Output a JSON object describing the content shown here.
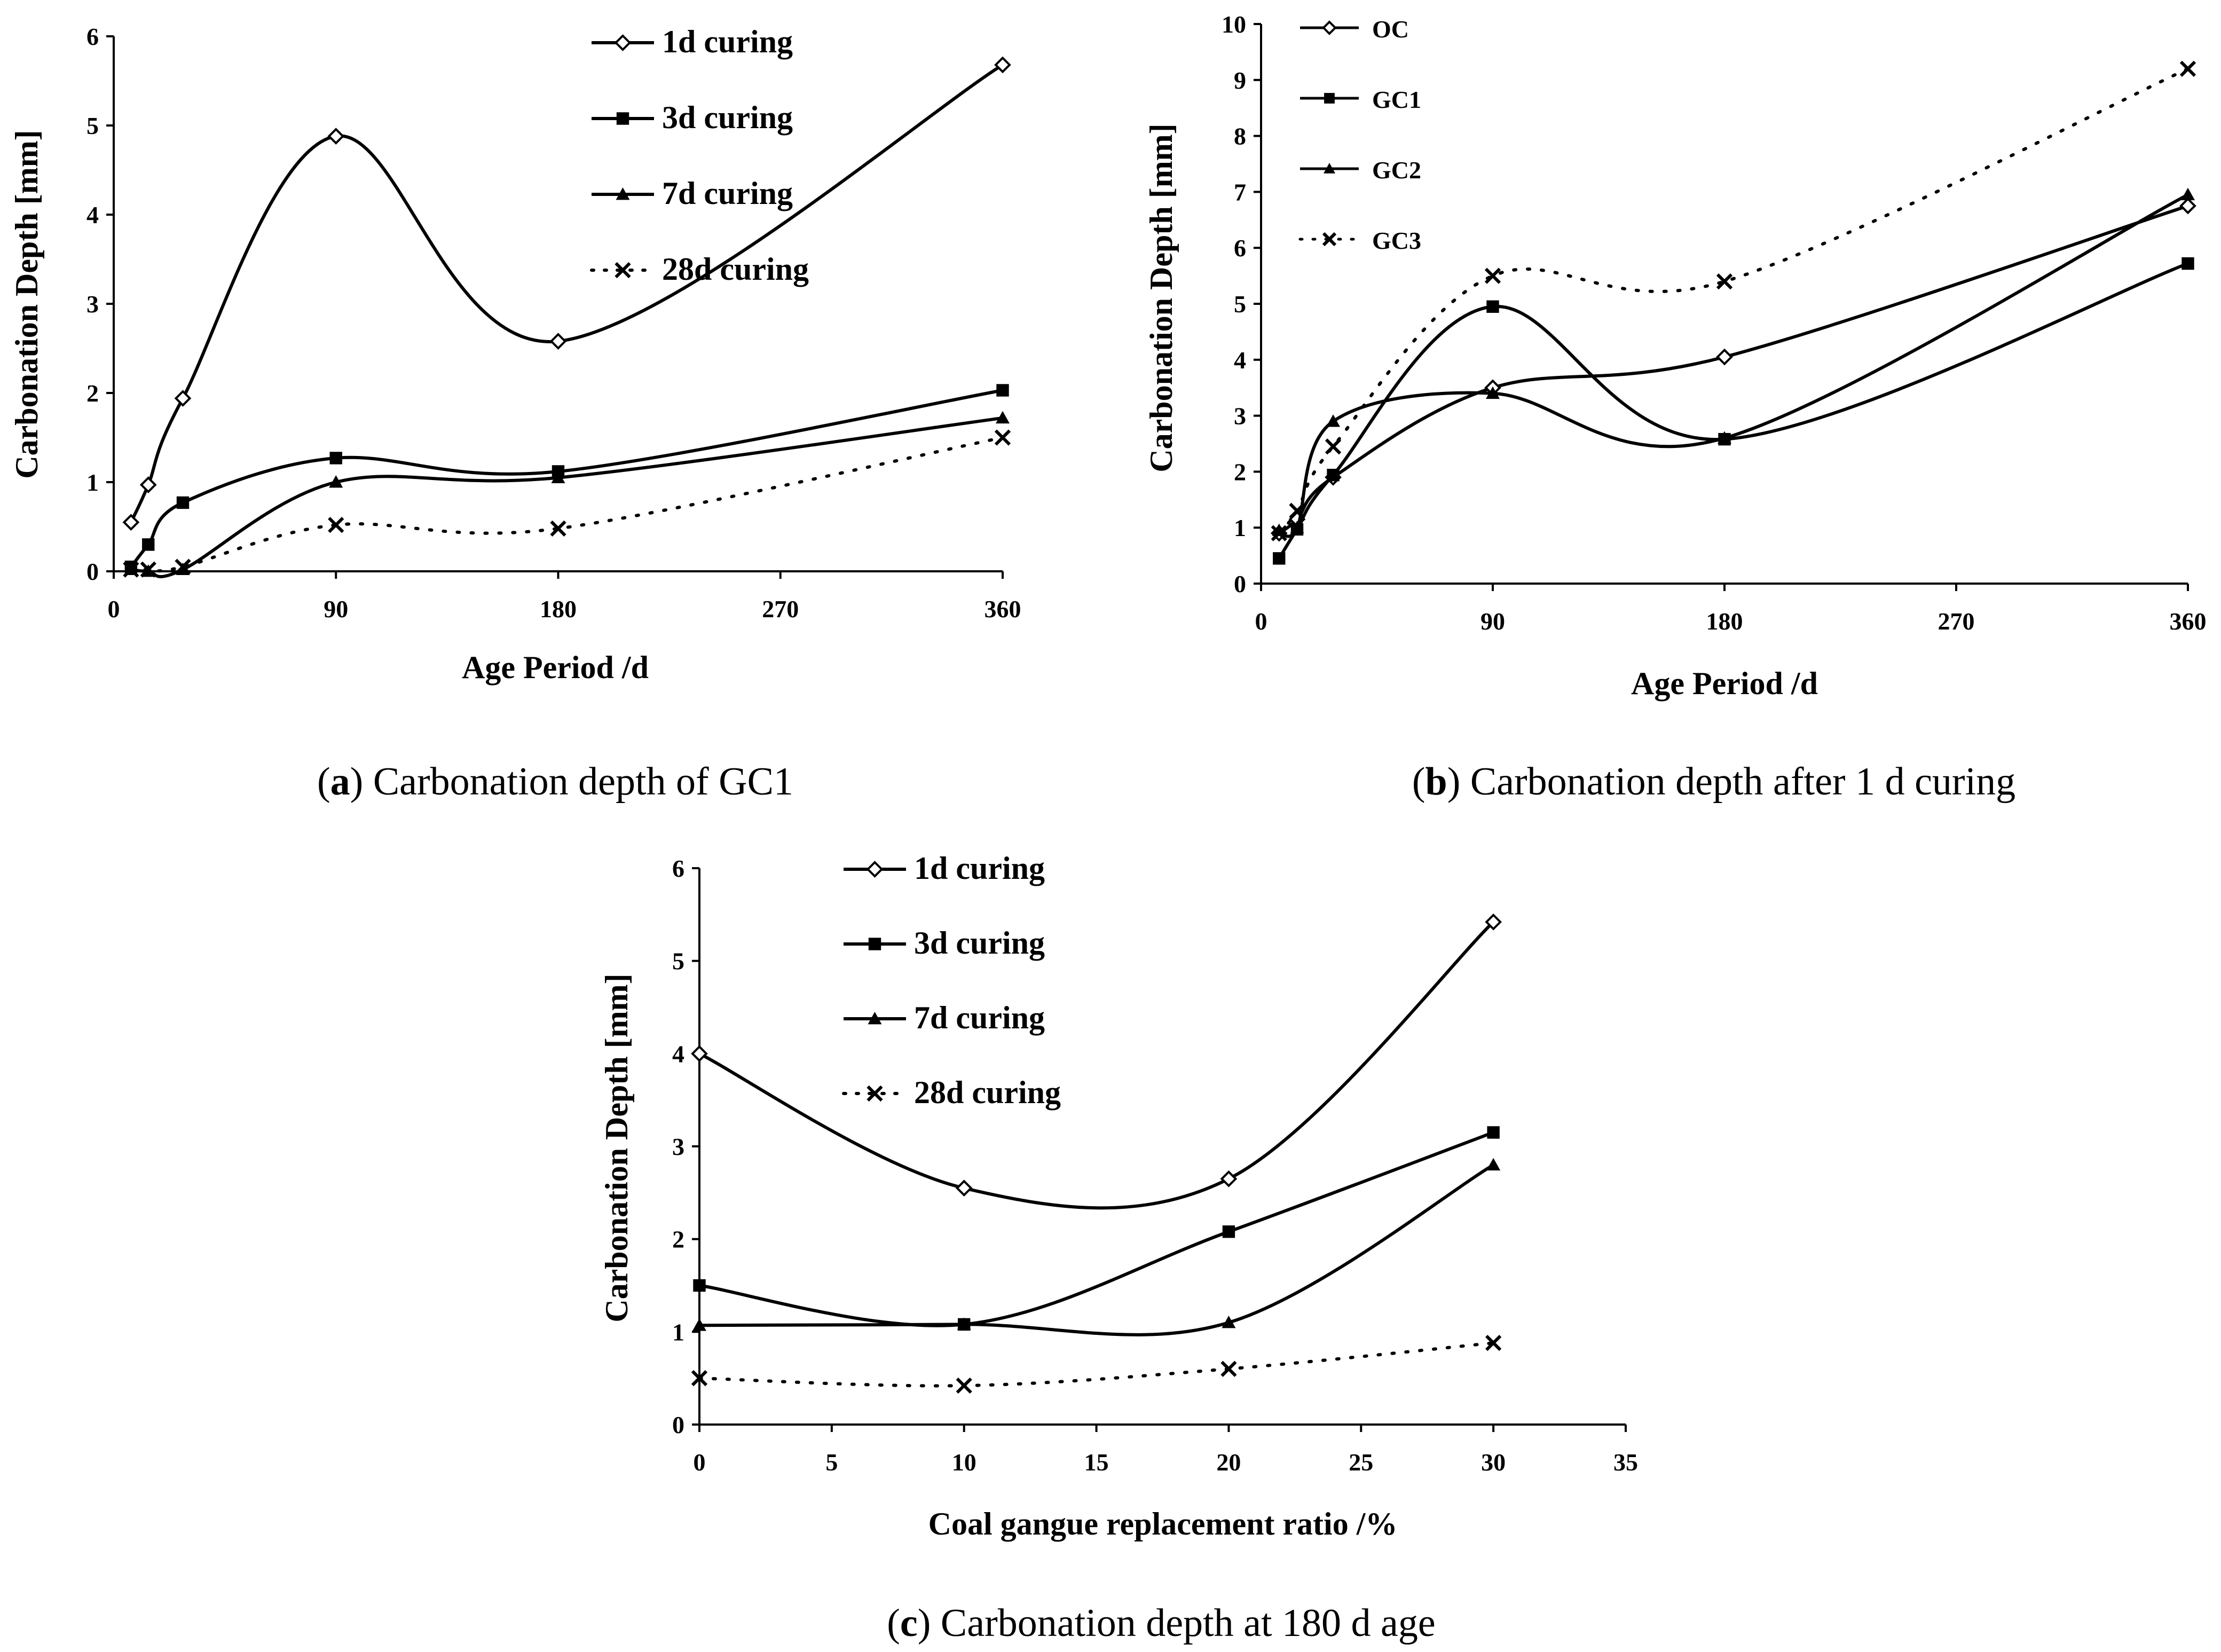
{
  "chart_data": [
    {
      "id": "a",
      "type": "line",
      "caption_letter": "a",
      "caption_text": "Carbonation depth of GC1",
      "xlabel": "Age Period /d",
      "ylabel": "Carbonation Depth [mm]",
      "xlim": [
        0,
        360
      ],
      "ylim": [
        0,
        6
      ],
      "xticks": [
        "0",
        "90",
        "180",
        "270",
        "360"
      ],
      "yticks": [
        "0",
        "1",
        "2",
        "3",
        "4",
        "5",
        "6"
      ],
      "x": [
        7,
        14,
        28,
        90,
        180,
        360
      ],
      "series": [
        {
          "name": "1d curing",
          "marker": "diamond",
          "style": "solid",
          "values": [
            0.55,
            0.97,
            1.94,
            4.88,
            2.58,
            5.68
          ]
        },
        {
          "name": "3d curing",
          "marker": "square",
          "style": "solid",
          "values": [
            0.05,
            0.3,
            0.77,
            1.27,
            1.12,
            2.03
          ]
        },
        {
          "name": "7d curing",
          "marker": "triangle",
          "style": "solid",
          "values": [
            0.02,
            0.0,
            0.02,
            1.0,
            1.05,
            1.72
          ]
        },
        {
          "name": "28d curing",
          "marker": "x",
          "style": "dotted",
          "values": [
            0.02,
            0.02,
            0.05,
            0.52,
            0.48,
            1.5
          ]
        }
      ]
    },
    {
      "id": "b",
      "type": "line",
      "caption_letter": "b",
      "caption_text": "Carbonation depth after 1 d curing",
      "xlabel": "Age Period /d",
      "ylabel": "Carbonation Depth [mm]",
      "xlim": [
        0,
        360
      ],
      "ylim": [
        0,
        10
      ],
      "xticks": [
        "0",
        "90",
        "180",
        "270",
        "360"
      ],
      "yticks": [
        "0",
        "1",
        "2",
        "3",
        "4",
        "5",
        "6",
        "7",
        "8",
        "9",
        "10"
      ],
      "x": [
        7,
        14,
        28,
        90,
        180,
        360
      ],
      "series": [
        {
          "name": "OC",
          "marker": "diamond",
          "style": "solid",
          "values": [
            0.9,
            1.15,
            1.9,
            3.5,
            4.05,
            6.75
          ]
        },
        {
          "name": "GC1",
          "marker": "square",
          "style": "solid",
          "values": [
            0.45,
            0.97,
            1.94,
            4.95,
            2.58,
            5.72
          ]
        },
        {
          "name": "GC2",
          "marker": "triangle",
          "style": "solid",
          "values": [
            0.95,
            1.0,
            2.9,
            3.4,
            2.6,
            6.95
          ]
        },
        {
          "name": "GC3",
          "marker": "x",
          "style": "dotted",
          "values": [
            0.9,
            1.3,
            2.45,
            5.5,
            5.4,
            9.2
          ]
        }
      ]
    },
    {
      "id": "c",
      "type": "line",
      "caption_letter": "c",
      "caption_text": "Carbonation depth at 180 d age",
      "xlabel": "Coal gangue replacement ratio /%",
      "ylabel": "Carbonation Depth [mm]",
      "xlim": [
        0,
        35
      ],
      "ylim": [
        0,
        6
      ],
      "xticks": [
        "0",
        "5",
        "10",
        "15",
        "20",
        "25",
        "30",
        "35"
      ],
      "yticks": [
        "0",
        "1",
        "2",
        "3",
        "4",
        "5",
        "6"
      ],
      "x": [
        0,
        10,
        20,
        30
      ],
      "series": [
        {
          "name": "1d curing",
          "marker": "diamond",
          "style": "solid",
          "values": [
            4.0,
            2.55,
            2.65,
            5.42
          ]
        },
        {
          "name": "3d curing",
          "marker": "square",
          "style": "solid",
          "values": [
            1.5,
            1.08,
            2.08,
            3.15
          ]
        },
        {
          "name": "7d curing",
          "marker": "triangle",
          "style": "solid",
          "values": [
            1.07,
            1.08,
            1.1,
            2.8
          ]
        },
        {
          "name": "28d curing",
          "marker": "x",
          "style": "dotted",
          "values": [
            0.5,
            0.42,
            0.6,
            0.88
          ]
        }
      ]
    }
  ]
}
